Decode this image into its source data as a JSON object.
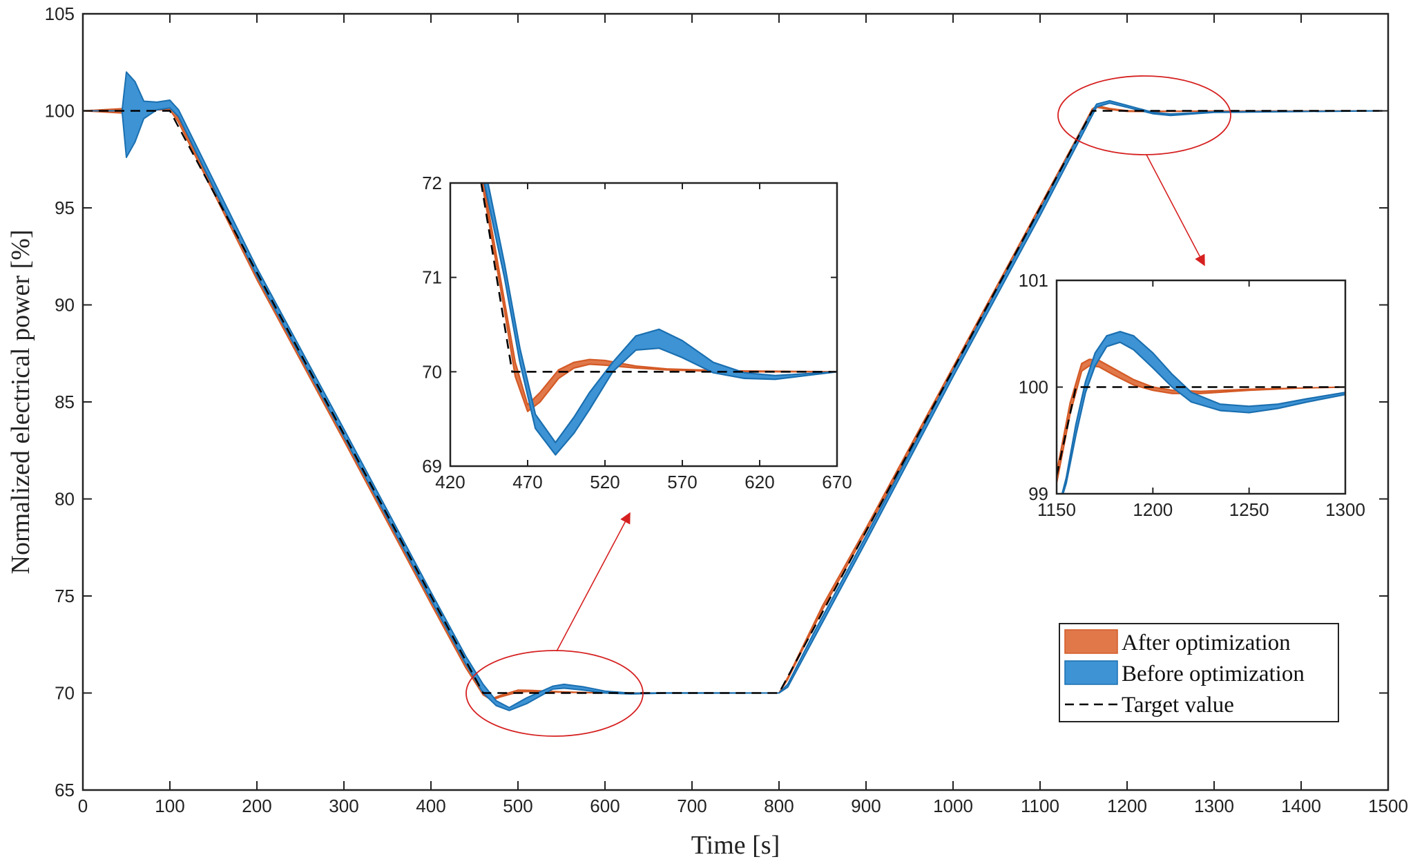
{
  "colors": {
    "after": "#E0784A",
    "after_edge": "#D45A26",
    "before": "#3D93D4",
    "before_edge": "#1A6FB0",
    "target": "#000000",
    "annotation": "#D62020"
  },
  "chart_data": [
    {
      "type": "area",
      "panel": "main",
      "xlabel": "Time [s]",
      "ylabel": "Normalized electrical power [%]",
      "xlim": [
        0,
        1500
      ],
      "ylim": [
        65,
        105
      ],
      "xticks": [
        "0",
        "100",
        "200",
        "300",
        "400",
        "500",
        "600",
        "700",
        "800",
        "900",
        "1000",
        "1100",
        "1200",
        "1300",
        "1400",
        "1500"
      ],
      "yticks": [
        "65",
        "70",
        "75",
        "80",
        "85",
        "90",
        "95",
        "100",
        "105"
      ],
      "grid": false,
      "legend_position": "bottom-right",
      "series": [
        {
          "name": "After optimization",
          "kind": "band",
          "x": [
            0,
            60,
            80,
            100,
            110,
            200,
            300,
            400,
            440,
            460,
            470,
            480,
            500,
            515,
            540,
            560,
            600,
            700,
            800,
            810,
            850,
            900,
            1000,
            1100,
            1150,
            1160,
            1165,
            1170,
            1180,
            1200,
            1225,
            1250,
            1300,
            1500
          ],
          "lower": [
            100,
            99.85,
            100.05,
            100.05,
            99.4,
            91.3,
            83.0,
            74.6,
            71.3,
            69.9,
            69.63,
            69.8,
            70.05,
            70.08,
            70.05,
            70.03,
            70.0,
            70.0,
            70.0,
            70.7,
            74.3,
            78.3,
            86.6,
            94.9,
            99.05,
            99.85,
            100.18,
            100.14,
            100.07,
            99.97,
            99.96,
            99.97,
            99.99,
            100.0
          ],
          "upper": [
            100,
            100.15,
            100.35,
            100.3,
            99.6,
            91.5,
            83.2,
            74.8,
            71.5,
            70.1,
            69.71,
            69.88,
            70.15,
            70.14,
            70.08,
            70.05,
            70.0,
            70.0,
            70.0,
            70.8,
            74.5,
            78.5,
            86.8,
            95.1,
            99.25,
            100.1,
            100.24,
            100.22,
            100.12,
            100.01,
            99.98,
            99.98,
            99.99,
            100.0
          ]
        },
        {
          "name": "Before optimization",
          "kind": "band",
          "x": [
            0,
            45,
            50,
            60,
            70,
            85,
            100,
            110,
            200,
            300,
            400,
            440,
            460,
            475,
            490,
            510,
            540,
            553,
            575,
            600,
            630,
            670,
            800,
            810,
            840,
            900,
            1000,
            1100,
            1150,
            1165,
            1180,
            1200,
            1230,
            1250,
            1300,
            1500
          ],
          "lower": [
            100,
            100,
            97.6,
            98.4,
            99.6,
            100.05,
            100.15,
            99.7,
            91.5,
            83.2,
            74.8,
            71.5,
            70.0,
            69.35,
            69.1,
            69.45,
            70.2,
            70.25,
            70.15,
            70.0,
            69.95,
            69.99,
            70.0,
            70.3,
            72.8,
            77.8,
            86.3,
            94.6,
            98.9,
            100.2,
            100.4,
            100.18,
            99.85,
            99.76,
            99.92,
            100.0
          ],
          "upper": [
            100,
            100,
            102.0,
            101.5,
            100.5,
            100.45,
            100.55,
            100.05,
            91.9,
            83.6,
            75.2,
            71.9,
            70.45,
            69.6,
            69.25,
            69.75,
            70.35,
            70.45,
            70.32,
            70.1,
            69.99,
            70.01,
            70.0,
            70.45,
            73.1,
            78.1,
            86.6,
            94.9,
            99.2,
            100.35,
            100.52,
            100.28,
            99.92,
            99.84,
            99.95,
            100.0
          ]
        },
        {
          "name": "Target value",
          "kind": "line",
          "x": [
            0,
            100,
            460,
            800,
            1160,
            1500
          ],
          "y": [
            100,
            100,
            70,
            70,
            100,
            100
          ]
        }
      ]
    },
    {
      "type": "area",
      "panel": "inset-valley",
      "xlim": [
        420,
        670
      ],
      "ylim": [
        69,
        72
      ],
      "xticks": [
        "420",
        "470",
        "520",
        "570",
        "620",
        "670"
      ],
      "yticks": [
        "69",
        "70",
        "71",
        "72"
      ],
      "series": [
        {
          "name": "After optimization",
          "kind": "band",
          "x": [
            420,
            440,
            455,
            462,
            470,
            478,
            490,
            500,
            510,
            520,
            540,
            560,
            600,
            670
          ],
          "lower": [
            73.7,
            72.05,
            70.65,
            69.95,
            69.58,
            69.68,
            69.93,
            70.04,
            70.08,
            70.07,
            70.04,
            70.02,
            70.0,
            70.0
          ],
          "upper": [
            73.7,
            72.15,
            70.75,
            70.1,
            69.65,
            69.78,
            70.02,
            70.1,
            70.13,
            70.12,
            70.06,
            70.03,
            70.01,
            70.0
          ]
        },
        {
          "name": "Before optimization",
          "kind": "band",
          "x": [
            420,
            440,
            455,
            465,
            475,
            488,
            500,
            510,
            525,
            540,
            555,
            570,
            590,
            610,
            630,
            650,
            670
          ],
          "lower": [
            74.0,
            72.15,
            71.0,
            70.1,
            69.4,
            69.12,
            69.35,
            69.6,
            70.0,
            70.23,
            70.25,
            70.15,
            69.99,
            69.93,
            69.92,
            69.96,
            70.0
          ],
          "upper": [
            74.2,
            72.35,
            71.15,
            70.25,
            69.55,
            69.25,
            69.52,
            69.78,
            70.1,
            70.38,
            70.45,
            70.33,
            70.1,
            69.99,
            69.96,
            69.98,
            70.0
          ]
        },
        {
          "name": "Target value",
          "kind": "line",
          "x": [
            420,
            460,
            670
          ],
          "y": [
            74.0,
            70.0,
            70.0
          ]
        }
      ]
    },
    {
      "type": "area",
      "panel": "inset-peak",
      "xlim": [
        1150,
        1300
      ],
      "ylim": [
        99,
        101
      ],
      "xticks": [
        "1150",
        "1200",
        "1250",
        "1300"
      ],
      "yticks": [
        "99",
        "100",
        "101"
      ],
      "series": [
        {
          "name": "After optimization",
          "kind": "band",
          "x": [
            1150,
            1157,
            1163,
            1167,
            1172,
            1180,
            1190,
            1200,
            1210,
            1225,
            1250,
            1275,
            1300
          ],
          "lower": [
            99.1,
            99.75,
            100.15,
            100.2,
            100.19,
            100.11,
            100.02,
            99.97,
            99.94,
            99.94,
            99.97,
            99.99,
            100.0
          ],
          "upper": [
            99.2,
            99.85,
            100.22,
            100.26,
            100.25,
            100.17,
            100.07,
            100.0,
            99.97,
            99.96,
            99.98,
            99.99,
            100.0
          ]
        },
        {
          "name": "Before optimization",
          "kind": "band",
          "x": [
            1150,
            1155,
            1160,
            1165,
            1170,
            1176,
            1183,
            1190,
            1200,
            1210,
            1220,
            1235,
            1250,
            1265,
            1280,
            1300
          ],
          "lower": [
            98.8,
            99.1,
            99.55,
            99.95,
            100.2,
            100.38,
            100.42,
            100.35,
            100.18,
            100.0,
            99.86,
            99.78,
            99.76,
            99.8,
            99.86,
            99.93
          ],
          "upper": [
            98.8,
            99.15,
            99.65,
            100.05,
            100.32,
            100.48,
            100.52,
            100.48,
            100.32,
            100.12,
            99.95,
            99.84,
            99.82,
            99.84,
            99.89,
            99.95
          ]
        },
        {
          "name": "Target value",
          "kind": "line",
          "x": [
            1150,
            1160,
            1300
          ],
          "y": [
            99.17,
            100.0,
            100.0
          ]
        }
      ]
    }
  ]
}
